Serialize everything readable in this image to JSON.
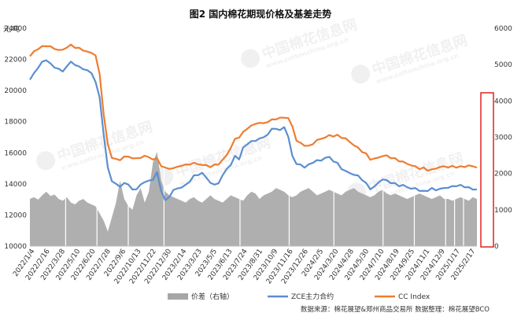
{
  "chart_data": {
    "type": "line",
    "title": "图2  国内棉花期现价格及基差走势",
    "y_left_unit": "元/吨",
    "y_left_ticks": [
      "10000",
      "12000",
      "14000",
      "16000",
      "18000",
      "20000",
      "22000",
      "24000"
    ],
    "y_right_ticks": [
      "0",
      "1000",
      "2000",
      "3000",
      "4000",
      "5000",
      "6000"
    ],
    "ylim_left": [
      10000,
      24000
    ],
    "ylim_right": [
      0,
      6000
    ],
    "x_ticks": [
      "2022/1/4",
      "2022/2/16",
      "2022/3/28",
      "2022/5/10",
      "2022/6/20",
      "2022/7/28",
      "2022/9/6",
      "2022/10/13",
      "2022/11/22",
      "2022/12/30",
      "2023/2/14",
      "2023/3/23",
      "2023/5/5",
      "2023/6/13",
      "2023/7/24",
      "2023/8/31",
      "2023/10/9",
      "2023/11/16",
      "2023/12/26",
      "2024/2/5",
      "2024/3/20",
      "2024/4/28",
      "2024/5/30",
      "2024/7/10",
      "2024/8/19",
      "2024/9/25",
      "2024/11/1",
      "2024/12/9",
      "2025/1/17",
      "2025/2/17"
    ],
    "grid": false,
    "legend_position": "bottom",
    "highlight_box": "right axis, 0-4200",
    "series": [
      {
        "name": "价差（右轴）",
        "kind": "area",
        "axis": "right",
        "color": "#a6a6a6",
        "values": [
          1300,
          1350,
          1280,
          1400,
          1500,
          1380,
          1420,
          1300,
          1250,
          1350,
          1200,
          1150,
          1250,
          1300,
          1200,
          1150,
          1100,
          900,
          700,
          400,
          800,
          1200,
          1800,
          1300,
          1100,
          1000,
          1400,
          1600,
          1200,
          1500,
          2300,
          2600,
          1800,
          1500,
          1400,
          1350,
          1300,
          1250,
          1200,
          1300,
          1350,
          1250,
          1200,
          1300,
          1400,
          1300,
          1250,
          1200,
          1300,
          1400,
          1350,
          1300,
          1250,
          1400,
          1500,
          1450,
          1300,
          1400,
          1450,
          1500,
          1600,
          1550,
          1500,
          1400,
          1350,
          1400,
          1500,
          1550,
          1600,
          1500,
          1400,
          1450,
          1500,
          1550,
          1500,
          1450,
          1400,
          1500,
          1550,
          1600,
          1500,
          1450,
          1400,
          1350,
          1400,
          1500,
          1550,
          1450,
          1400,
          1450,
          1400,
          1350,
          1300,
          1350,
          1400,
          1450,
          1400,
          1350,
          1300,
          1350,
          1400,
          1300,
          1300,
          1250,
          1300,
          1350,
          1300,
          1250,
          1350,
          1300
        ]
      },
      {
        "name": "ZCE主力合约",
        "kind": "line",
        "axis": "left",
        "color": "#5b8fd0",
        "values": [
          20700,
          21100,
          21500,
          21800,
          22000,
          21700,
          21500,
          21400,
          21200,
          21600,
          21800,
          21700,
          21500,
          21400,
          21300,
          21100,
          20600,
          19500,
          17200,
          15000,
          14200,
          14000,
          13800,
          14100,
          13900,
          13700,
          13600,
          14000,
          14100,
          14200,
          14300,
          14700,
          13600,
          12900,
          13200,
          13600,
          13700,
          13800,
          13900,
          14200,
          14500,
          14600,
          14700,
          14400,
          14100,
          13900,
          14100,
          14500,
          15000,
          15200,
          15800,
          15600,
          16300,
          16600,
          16700,
          16800,
          16900,
          17000,
          17200,
          17500,
          17600,
          17400,
          17700,
          17000,
          15800,
          15300,
          15200,
          15100,
          15200,
          15400,
          15500,
          15500,
          15700,
          15700,
          15500,
          15300,
          15000,
          14800,
          14700,
          14600,
          14500,
          14300,
          14000,
          13700,
          13800,
          14100,
          14300,
          14200,
          14100,
          14000,
          13900,
          13900,
          13800,
          13700,
          13700,
          13600,
          13500,
          13600,
          13700,
          13600,
          13700,
          13700,
          13800,
          13800,
          13900,
          13900,
          13800,
          13800,
          13600,
          13700
        ]
      },
      {
        "name": "CC Index",
        "kind": "line",
        "axis": "left",
        "color": "#ed7d31",
        "values": [
          22200,
          22500,
          22700,
          22800,
          22900,
          22800,
          22700,
          22600,
          22600,
          22800,
          22900,
          22800,
          22700,
          22600,
          22500,
          22400,
          22300,
          21000,
          18500,
          16500,
          15700,
          15600,
          15500,
          15800,
          15700,
          15700,
          15600,
          15700,
          15800,
          15700,
          15600,
          15600,
          15200,
          15000,
          15000,
          15000,
          15100,
          15200,
          15200,
          15300,
          15300,
          15300,
          15200,
          15200,
          15100,
          15200,
          15300,
          15500,
          15900,
          16300,
          16900,
          17000,
          17300,
          17600,
          17700,
          17900,
          17900,
          17900,
          18000,
          18100,
          18200,
          18200,
          18300,
          18200,
          17700,
          16800,
          16600,
          16500,
          16400,
          16600,
          16800,
          16900,
          17000,
          17100,
          17100,
          17100,
          17000,
          16900,
          16700,
          16500,
          16300,
          16100,
          15900,
          15600,
          15600,
          15700,
          15800,
          15800,
          15700,
          15600,
          15500,
          15400,
          15300,
          15200,
          15100,
          15000,
          15000,
          14900,
          14900,
          15000,
          15100,
          15100,
          15100,
          15100,
          15100,
          15100,
          15100,
          15200,
          15100,
          15100
        ]
      }
    ],
    "source_note": "数据来源：棉花展望&郑州商品交易所    数据整理：棉花展望BCO",
    "watermark": "中国棉花信息网",
    "watermark_url": "www.cottonchina.org.cn"
  }
}
